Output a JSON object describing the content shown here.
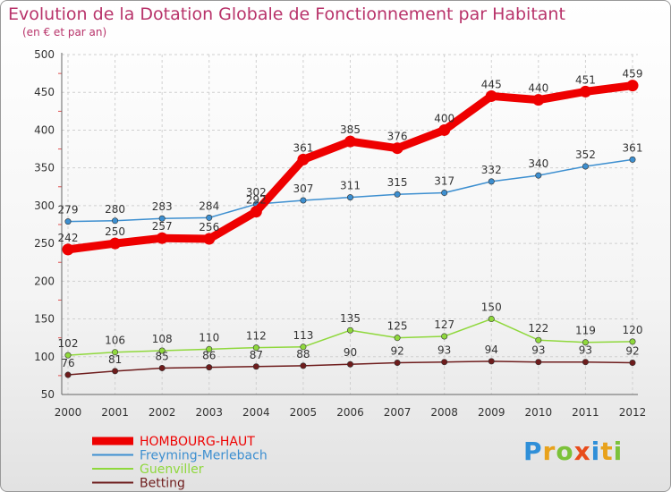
{
  "chart_data": {
    "type": "line",
    "title": "Evolution de la Dotation Globale de Fonctionnement par Habitant",
    "subtitle": "(en € et par an)",
    "x": [
      "2000",
      "2001",
      "2002",
      "2003",
      "2004",
      "2005",
      "2006",
      "2007",
      "2008",
      "2009",
      "2010",
      "2011",
      "2012"
    ],
    "ylim": [
      50,
      500
    ],
    "yticks": [
      50,
      100,
      150,
      200,
      250,
      300,
      350,
      400,
      450,
      500
    ],
    "grid": true,
    "legend_position": "bottom-left",
    "series": [
      {
        "name": "HOMBOURG-HAUT",
        "color": "#ee0000",
        "values": [
          242,
          250,
          257,
          256,
          292,
          361,
          385,
          376,
          400,
          445,
          440,
          451,
          459
        ]
      },
      {
        "name": "Freyming-Merlebach",
        "color": "#3d8fd0",
        "values": [
          279,
          280,
          283,
          284,
          302,
          307,
          311,
          315,
          317,
          332,
          340,
          352,
          361
        ]
      },
      {
        "name": "Guenviller",
        "color": "#8fd83c",
        "values": [
          102,
          106,
          108,
          110,
          112,
          113,
          135,
          125,
          127,
          150,
          122,
          119,
          120
        ]
      },
      {
        "name": "Betting",
        "color": "#6e1c1c",
        "values": [
          76,
          81,
          85,
          86,
          87,
          88,
          90,
          92,
          93,
          94,
          93,
          93,
          92
        ]
      }
    ]
  },
  "logo": {
    "text": "Proxiti",
    "colors": [
      "#2f8fd8",
      "#e8a21c",
      "#7cc23a",
      "#e84c1c",
      "#2f8fd8",
      "#e8a21c",
      "#7cc23a"
    ]
  }
}
